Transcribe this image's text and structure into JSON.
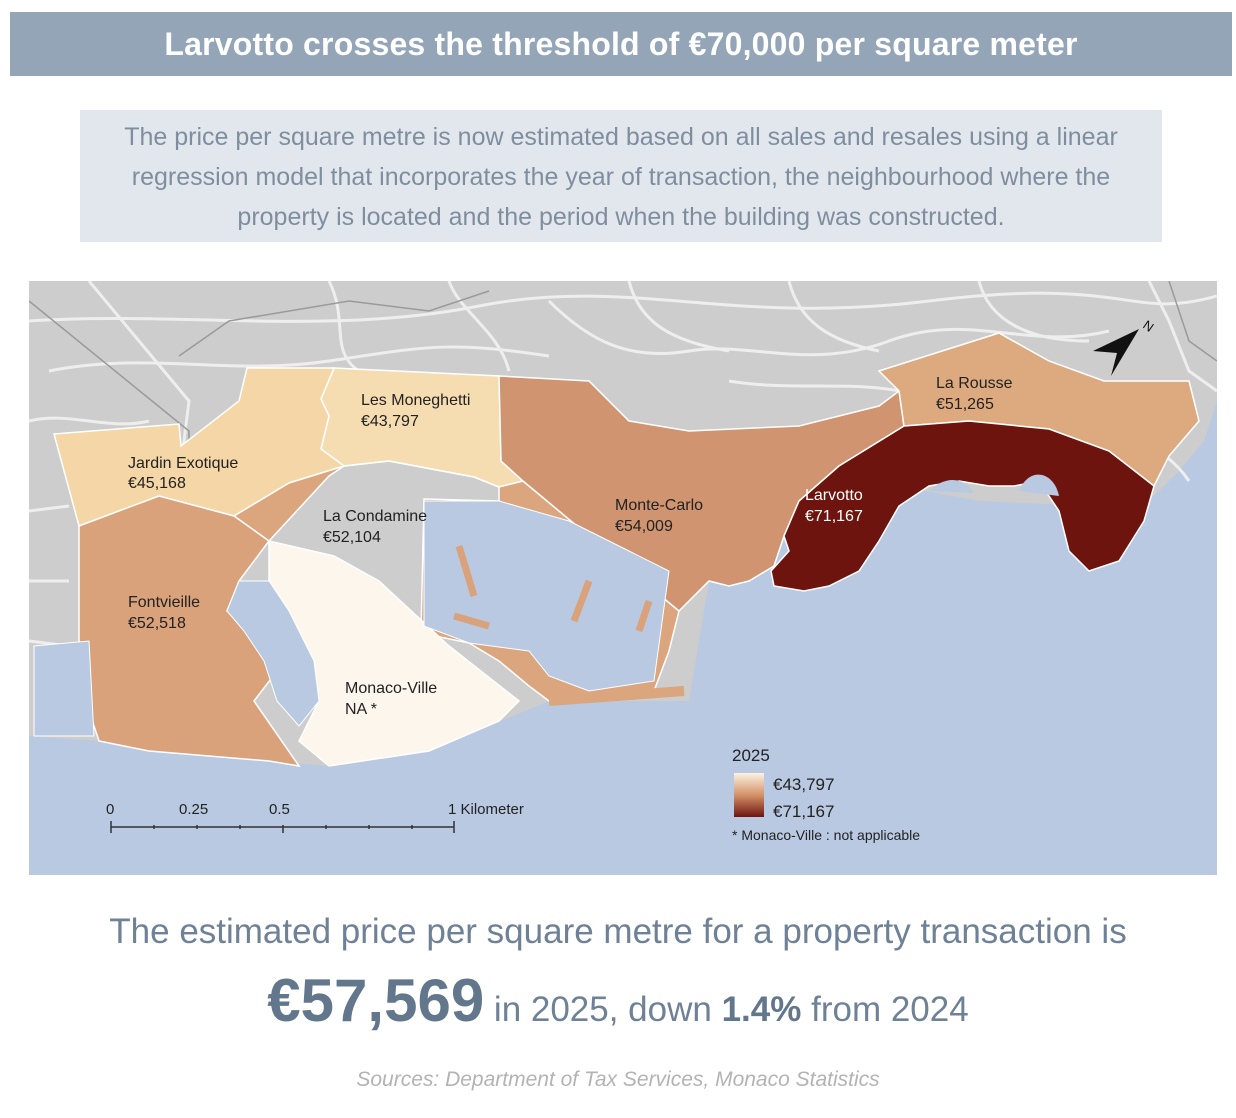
{
  "title": "Larvotto crosses the threshold of €70,000 per square meter",
  "intro": "The price per square metre is now estimated based on all sales and resales using a linear regression model that incorporates the year of transaction, the neighbourhood where the property is located and the period when the building was constructed.",
  "map": {
    "zones": [
      {
        "name": "Les Moneghetti",
        "value": "€43,797",
        "color": "#f6dcb1"
      },
      {
        "name": "Jardin Exotique",
        "value": "€45,168",
        "color": "#f4d6a7"
      },
      {
        "name": "La Condamine",
        "value": "€52,104",
        "color": "#dba57e"
      },
      {
        "name": "Fontvieille",
        "value": "€52,518",
        "color": "#d9a27b"
      },
      {
        "name": "Monaco-Ville",
        "value": "NA *",
        "color": "#fcf6ec"
      },
      {
        "name": "Monte-Carlo",
        "value": "€54,009",
        "color": "#d09470"
      },
      {
        "name": "La Rousse",
        "value": "€51,265",
        "color": "#ddaa80"
      },
      {
        "name": "Larvotto",
        "value": "€71,167",
        "color": "#6e140e"
      }
    ],
    "legend": {
      "title": "2025",
      "min_label": "€43,797",
      "max_label": "€71,167",
      "min_color": "#fcf2e2",
      "max_color": "#6e140e",
      "note": "* Monaco-Ville : not applicable"
    },
    "scale_bar": {
      "ticks": [
        "0",
        "0.25",
        "0.5",
        "1 Kilometer"
      ]
    },
    "north_arrow_label": "N",
    "colors": {
      "sea": "#b9c9e1",
      "land": "#cdcdcd",
      "roads": "#eeeeee"
    }
  },
  "summary_line": "The estimated price per square metre for a property transaction is",
  "headline": {
    "price": "€57,569",
    "text1": " in 2025, down ",
    "change": "1.4%",
    "text2": " from 2024"
  },
  "sources": "Sources: Department of Tax Services, Monaco Statistics"
}
